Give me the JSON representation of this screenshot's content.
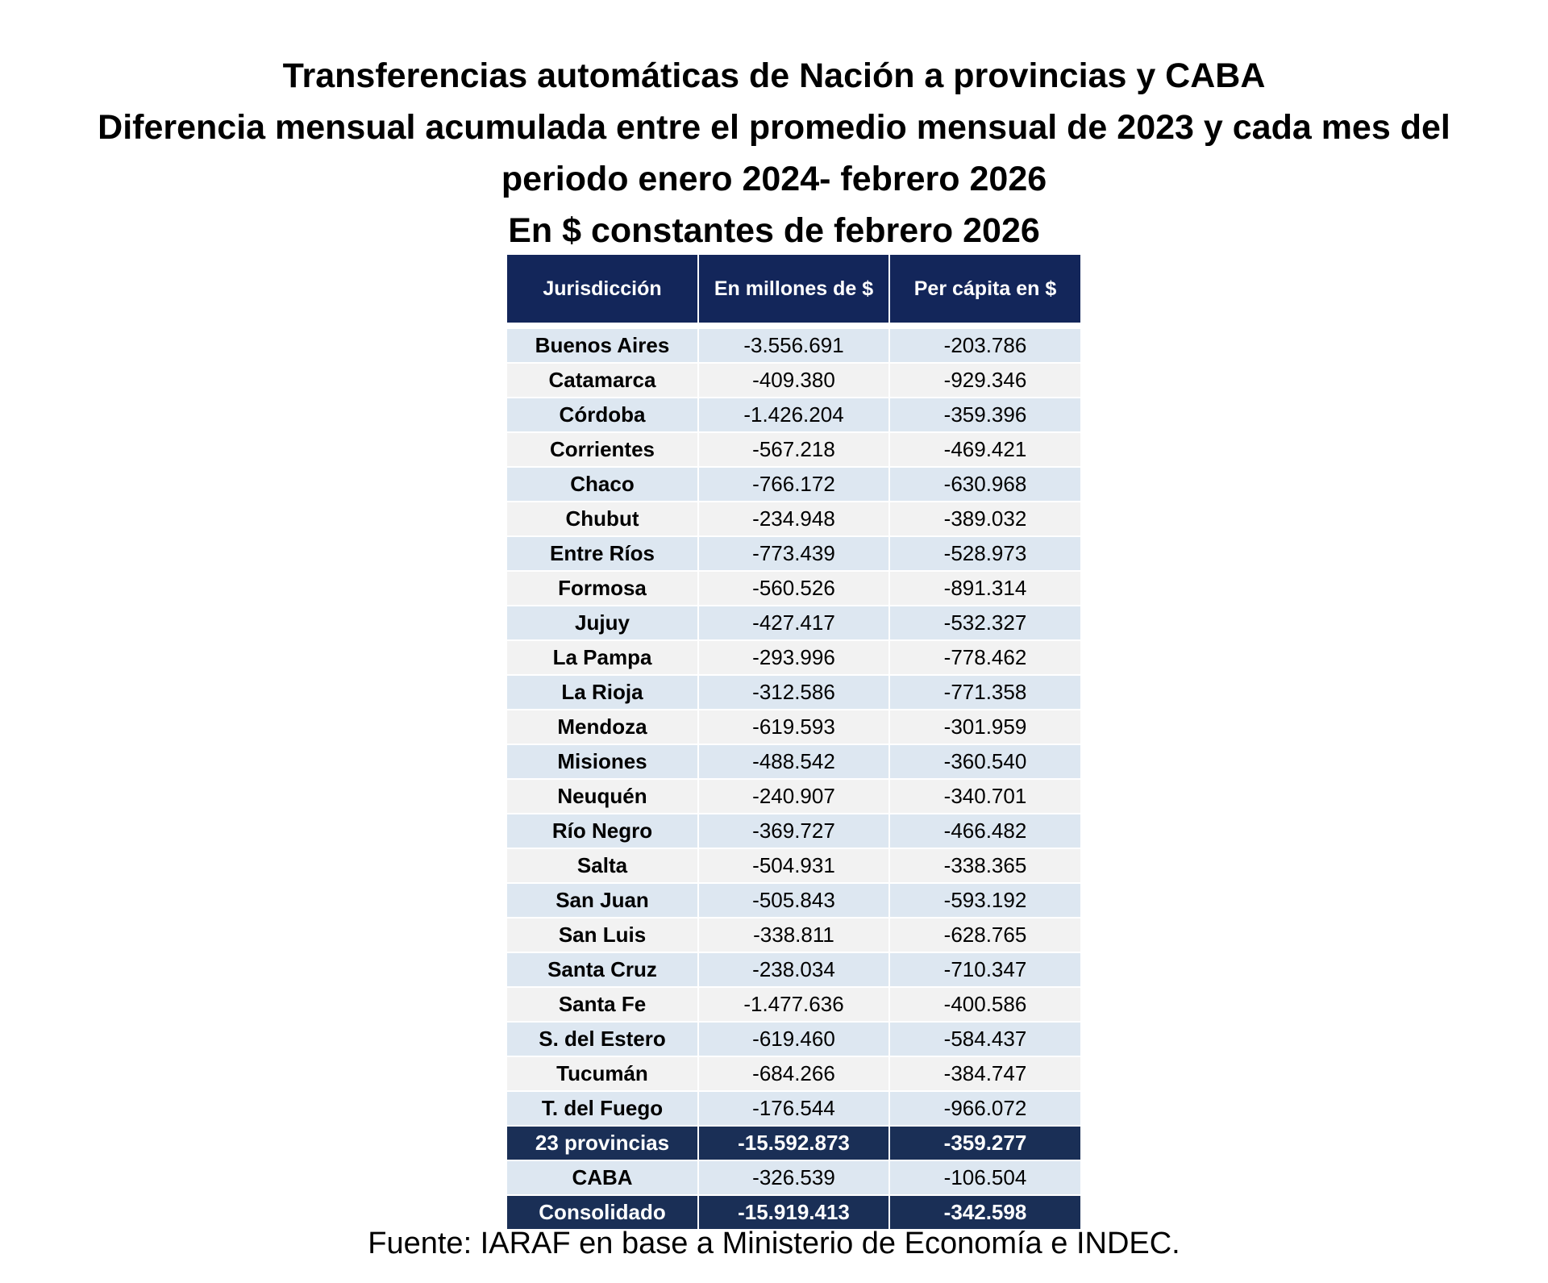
{
  "title_lines": [
    "Transferencias automáticas de Nación a provincias y CABA",
    "Diferencia mensual acumulada entre el promedio mensual de 2023 y cada mes del",
    "periodo enero 2024- febrero 2026",
    "En $ constantes de febrero 2026"
  ],
  "colors": {
    "header_bg": "#13265a",
    "total_bg": "#1a2f56",
    "row_odd_bg": "#dde7f1",
    "row_even_bg": "#f2f2f2"
  },
  "chart_data": {
    "type": "table",
    "columns": [
      "Jurisdicción",
      "En millones de $",
      "Per cápita en $"
    ],
    "rows": [
      [
        "Buenos Aires",
        "-3.556.691",
        "-203.786"
      ],
      [
        "Catamarca",
        "-409.380",
        "-929.346"
      ],
      [
        "Córdoba",
        "-1.426.204",
        "-359.396"
      ],
      [
        "Corrientes",
        "-567.218",
        "-469.421"
      ],
      [
        "Chaco",
        "-766.172",
        "-630.968"
      ],
      [
        "Chubut",
        "-234.948",
        "-389.032"
      ],
      [
        "Entre Ríos",
        "-773.439",
        "-528.973"
      ],
      [
        "Formosa",
        "-560.526",
        "-891.314"
      ],
      [
        "Jujuy",
        "-427.417",
        "-532.327"
      ],
      [
        "La Pampa",
        "-293.996",
        "-778.462"
      ],
      [
        "La Rioja",
        "-312.586",
        "-771.358"
      ],
      [
        "Mendoza",
        "-619.593",
        "-301.959"
      ],
      [
        "Misiones",
        "-488.542",
        "-360.540"
      ],
      [
        "Neuquén",
        "-240.907",
        "-340.701"
      ],
      [
        "Río Negro",
        "-369.727",
        "-466.482"
      ],
      [
        "Salta",
        "-504.931",
        "-338.365"
      ],
      [
        "San Juan",
        "-505.843",
        "-593.192"
      ],
      [
        "San Luis",
        "-338.811",
        "-628.765"
      ],
      [
        "Santa Cruz",
        "-238.034",
        "-710.347"
      ],
      [
        "Santa Fe",
        "-1.477.636",
        "-400.586"
      ],
      [
        "S. del Estero",
        "-619.460",
        "-584.437"
      ],
      [
        "Tucumán",
        "-684.266",
        "-384.747"
      ],
      [
        "T. del Fuego",
        "-176.544",
        "-966.072"
      ],
      [
        "23 provincias",
        "-15.592.873",
        "-359.277"
      ],
      [
        "CABA",
        "-326.539",
        "-106.504"
      ],
      [
        "Consolidado",
        "-15.919.413",
        "-342.598"
      ]
    ],
    "highlighted_rows": [
      "23 provincias",
      "Consolidado"
    ]
  },
  "source": "Fuente: IARAF en base a Ministerio de Economía e INDEC."
}
